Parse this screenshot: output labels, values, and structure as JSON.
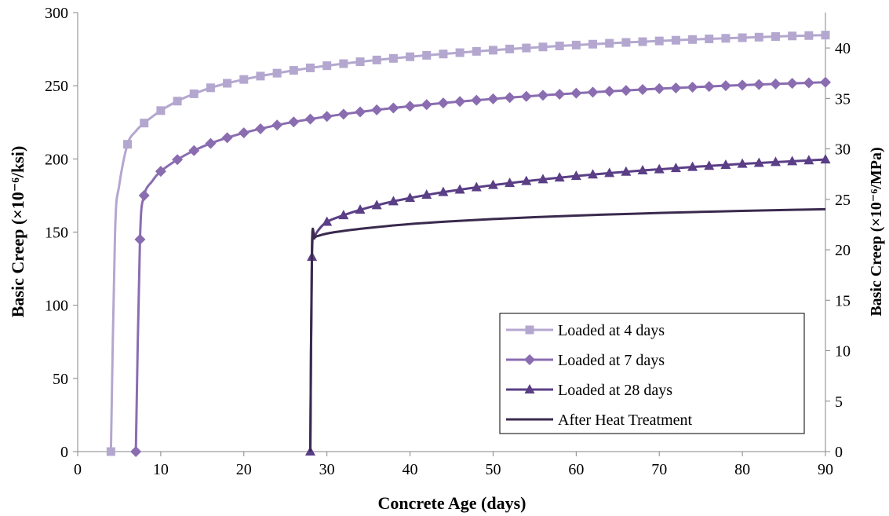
{
  "chart_data": {
    "type": "line",
    "xlabel": "Concrete Age (days)",
    "ylabel": "Basic Creep (×10⁻⁶/ksi)",
    "y2label": "Basic Creep (×10⁻⁶/MPa)",
    "xlim": [
      0,
      90
    ],
    "ylim": [
      0,
      300
    ],
    "y2lim": [
      0,
      43.51
    ],
    "x_ticks": [
      0,
      10,
      20,
      30,
      40,
      50,
      60,
      70,
      80,
      90
    ],
    "y_ticks": [
      0,
      50,
      100,
      150,
      200,
      250,
      300
    ],
    "y2_ticks": [
      0,
      5,
      10,
      15,
      20,
      25,
      30,
      35,
      40
    ],
    "grid": false,
    "legend_position": "bottom-right",
    "series": [
      {
        "name": "Loaded at 4 days",
        "color": "#b4a7cf",
        "marker": "square",
        "load_age": 4,
        "x": [
          4,
          4.5,
          5,
          6,
          7,
          8,
          10,
          12,
          14,
          16,
          18,
          20,
          22,
          24,
          26,
          28,
          30,
          32,
          34,
          36,
          38,
          40,
          42,
          44,
          46,
          48,
          50,
          52,
          54,
          56,
          58,
          60,
          62,
          64,
          66,
          68,
          70,
          72,
          74,
          76,
          78,
          80,
          82,
          84,
          86,
          88,
          90
        ],
        "y": [
          0,
          150,
          182,
          210,
          219,
          224.5,
          233,
          239.5,
          244.5,
          248.6,
          251.7,
          254.3,
          256.6,
          258.6,
          260.5,
          262.2,
          263.7,
          265.1,
          266.4,
          267.6,
          268.7,
          269.8,
          270.8,
          271.7,
          272.6,
          273.5,
          274.3,
          275.1,
          275.8,
          276.5,
          277.2,
          277.8,
          278.4,
          279,
          279.6,
          280.1,
          280.6,
          281.1,
          281.6,
          282,
          282.4,
          282.8,
          283.2,
          283.6,
          284,
          284.3,
          284.6
        ],
        "marker_x": [
          4,
          6,
          8,
          10,
          12,
          14,
          16,
          18,
          20,
          22,
          24,
          26,
          28,
          30,
          32,
          34,
          36,
          38,
          40,
          42,
          44,
          46,
          48,
          50,
          52,
          54,
          56,
          58,
          60,
          62,
          64,
          66,
          68,
          70,
          72,
          74,
          76,
          78,
          80,
          82,
          84,
          86,
          88,
          90
        ],
        "marker_x_extra": [
          4
        ]
      },
      {
        "name": "Loaded at 7 days",
        "color": "#8a6cb0",
        "marker": "diamond",
        "load_age": 7,
        "x": [
          7,
          7.5,
          8,
          9,
          10,
          12,
          14,
          16,
          18,
          20,
          22,
          24,
          26,
          28,
          30,
          32,
          34,
          36,
          38,
          40,
          42,
          44,
          46,
          48,
          50,
          52,
          54,
          56,
          58,
          60,
          62,
          64,
          66,
          68,
          70,
          72,
          74,
          76,
          78,
          80,
          82,
          84,
          86,
          88,
          90
        ],
        "y": [
          0,
          145,
          175,
          185,
          191.5,
          199.5,
          205.7,
          210.6,
          214.5,
          217.8,
          220.6,
          223.1,
          225.3,
          227.2,
          229,
          230.6,
          232.1,
          233.5,
          234.8,
          236,
          237.1,
          238.2,
          239.2,
          240.1,
          241,
          241.9,
          242.7,
          243.5,
          244.2,
          244.9,
          245.6,
          246.2,
          246.8,
          247.4,
          248,
          248.5,
          249,
          249.5,
          250,
          250.4,
          250.8,
          251.2,
          251.6,
          252,
          252.4
        ],
        "marker_x": [
          7,
          7.5,
          8,
          10,
          12,
          14,
          16,
          18,
          20,
          22,
          24,
          26,
          28,
          30,
          32,
          34,
          36,
          38,
          40,
          42,
          44,
          46,
          48,
          50,
          52,
          54,
          56,
          58,
          60,
          62,
          64,
          66,
          68,
          70,
          72,
          74,
          76,
          78,
          80,
          82,
          84,
          86,
          88,
          90
        ]
      },
      {
        "name": "Loaded at 28 days",
        "color": "#5a3e86",
        "marker": "triangle",
        "load_age": 28,
        "x": [
          28,
          28.2,
          28.5,
          29,
          30,
          32,
          34,
          36,
          38,
          40,
          42,
          44,
          46,
          48,
          50,
          52,
          54,
          56,
          58,
          60,
          62,
          64,
          66,
          68,
          70,
          72,
          74,
          76,
          78,
          80,
          82,
          84,
          86,
          88,
          90
        ],
        "y": [
          0,
          133,
          146,
          151.5,
          157,
          161.5,
          165.2,
          168.3,
          171,
          173.3,
          175.4,
          177.3,
          179,
          180.6,
          182.1,
          183.5,
          184.8,
          186,
          187.2,
          188.3,
          189.3,
          190.3,
          191.2,
          192.1,
          192.9,
          193.7,
          194.5,
          195.2,
          195.9,
          196.6,
          197.2,
          197.8,
          198.4,
          199,
          199.6
        ],
        "marker_x": [
          28,
          28.2,
          30,
          32,
          34,
          36,
          38,
          40,
          42,
          44,
          46,
          48,
          50,
          52,
          54,
          56,
          58,
          60,
          62,
          64,
          66,
          68,
          70,
          72,
          74,
          76,
          78,
          80,
          82,
          84,
          86,
          88,
          90
        ]
      },
      {
        "name": "After Heat Treatment",
        "color": "#3a2a4e",
        "marker": "none",
        "load_age": 28,
        "x": [
          28,
          28.2,
          28.5,
          29,
          30,
          32,
          35,
          40,
          45,
          50,
          55,
          60,
          65,
          70,
          75,
          80,
          85,
          90
        ],
        "y": [
          0,
          140,
          146,
          147.5,
          149,
          150.8,
          152.8,
          155.5,
          157.4,
          158.9,
          160.2,
          161.3,
          162.2,
          163.1,
          163.8,
          164.5,
          165.1,
          165.6
        ]
      }
    ]
  }
}
